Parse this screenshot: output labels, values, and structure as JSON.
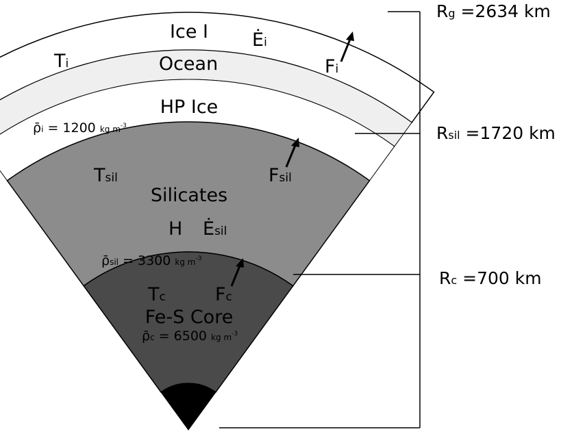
{
  "layers": {
    "ice_i": "Ice I",
    "ocean": "Ocean",
    "hp_ice": "HP Ice",
    "silicates": "Silicates",
    "core": "Fe-S Core"
  },
  "symbols": {
    "t_ice_main": "T",
    "t_ice_sub": "i",
    "e_ice_main": "Ė",
    "e_ice_sub": "i",
    "f_ice_main": "F",
    "f_ice_sub": "i",
    "t_sil_main": "T",
    "t_sil_sub": "sil",
    "f_sil_main": "F",
    "f_sil_sub": "sil",
    "h": "H",
    "e_sil_main": "Ė",
    "e_sil_sub": "sil",
    "t_core_main": "T",
    "t_core_sub": "c",
    "f_core_main": "F",
    "f_core_sub": "c"
  },
  "densities": {
    "ice": {
      "symbol": "ρ̄",
      "sub": "i",
      "value": " = 1200 ",
      "unit": "kg m",
      "exp": "-3"
    },
    "sil": {
      "symbol": "ρ̄",
      "sub": "sil",
      "value": " = 3300 ",
      "unit": "kg m",
      "exp": "-3"
    },
    "core": {
      "symbol": "ρ̄",
      "sub": "c",
      "value": " = 6500 ",
      "unit": "kg m",
      "exp": "-3"
    }
  },
  "radii": {
    "rg": {
      "main": "R",
      "sub": "g",
      "value": " =2634 km"
    },
    "rsil": {
      "main": "R",
      "sub": "sil",
      "value": " =1720 km"
    },
    "rc": {
      "main": "R",
      "sub": "c",
      "value": " =700 km"
    }
  },
  "colors": {
    "ice_i": "#ffffff",
    "ocean": "#efefef",
    "hp_ice": "#ffffff",
    "silicates": "#8c8c8c",
    "core": "#4a4a4a",
    "center": "#000000",
    "outline": "#000000"
  }
}
